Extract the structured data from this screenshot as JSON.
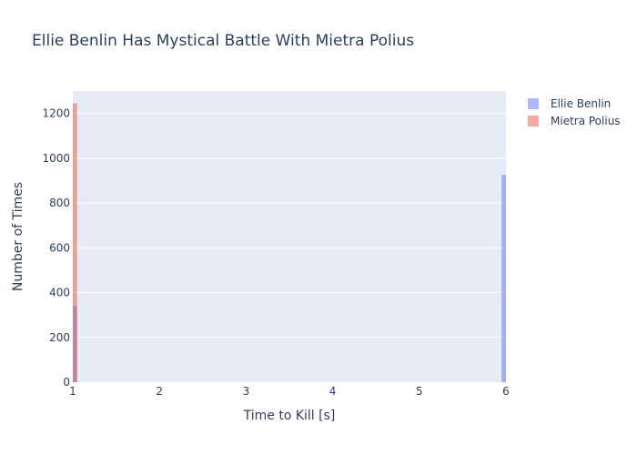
{
  "chart_data": {
    "type": "bar",
    "title": "Ellie Benlin Has Mystical Battle With Mietra Polius",
    "xlabel": "Time to Kill [s]",
    "ylabel": "Number of Times",
    "xlim": [
      1,
      6
    ],
    "ylim": [
      0,
      1300
    ],
    "x_ticks": [
      1,
      2,
      3,
      4,
      5,
      6
    ],
    "y_ticks": [
      0,
      200,
      400,
      600,
      800,
      1000,
      1200
    ],
    "grid": true,
    "legend_position": "top-right",
    "barmode": "overlay",
    "bin_width": 0.1,
    "series": [
      {
        "name": "Ellie Benlin",
        "color": "#636efa",
        "opacity": 0.5,
        "points": [
          {
            "x": 1,
            "y": 340
          },
          {
            "x": 6,
            "y": 925
          }
        ]
      },
      {
        "name": "Mietra Polius",
        "color": "#ef553b",
        "opacity": 0.5,
        "points": [
          {
            "x": 1,
            "y": 1245
          }
        ]
      }
    ]
  }
}
